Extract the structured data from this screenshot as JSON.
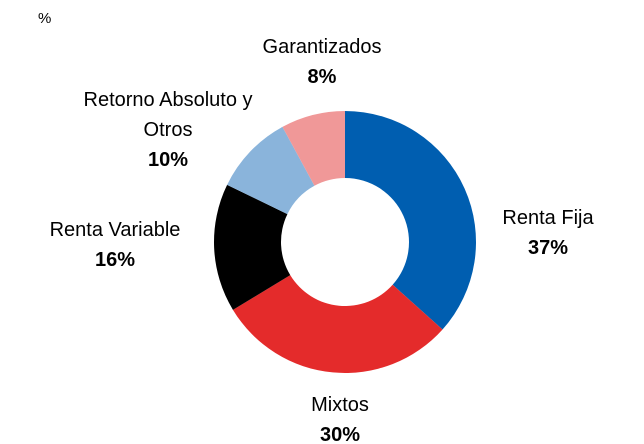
{
  "chart_data": {
    "type": "donut",
    "unit_label": "%",
    "categories": [
      "Renta Fija",
      "Mixtos",
      "Renta Variable",
      "Retorno Absoluto y Otros",
      "Garantizados"
    ],
    "values": [
      37,
      30,
      16,
      10,
      8
    ],
    "value_labels": [
      "37%",
      "30%",
      "16%",
      "10%",
      "8%"
    ],
    "colors": [
      "#005eb0",
      "#e42b2b",
      "#000000",
      "#8ab4db",
      "#f09898"
    ]
  }
}
